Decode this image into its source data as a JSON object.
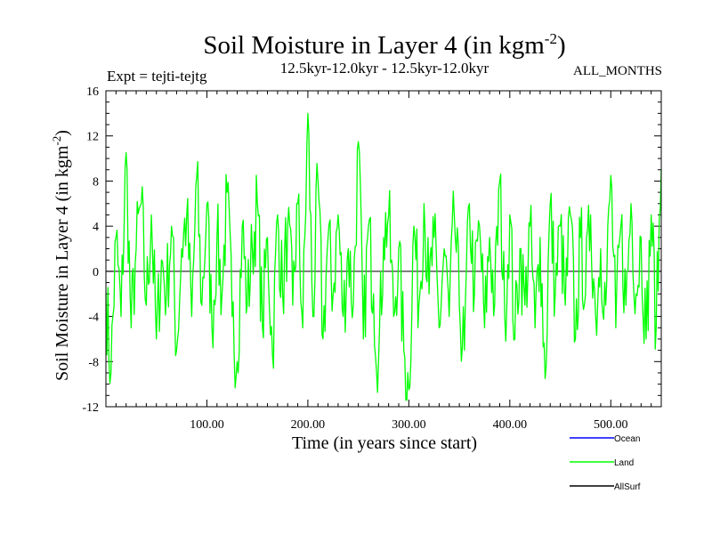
{
  "header": {
    "title_main": "Soil Moisture in Layer 4 (in kgm",
    "title_sup": "-2",
    "title_close": ")",
    "expt": "Expt = tejti-tejtg",
    "period": "12.5kyr-12.0kyr - 12.5kyr-12.0kyr",
    "months": "ALL_MONTHS"
  },
  "chart_data": {
    "type": "line",
    "title": "Soil Moisture in Layer 4 (in kgm-2)",
    "xlabel": "Time (in years since start)",
    "ylabel_main": "Soil Moisture in Layer 4 (in kgm",
    "ylabel_sup": "-2",
    "ylabel_close": ")",
    "xlim": [
      0,
      550
    ],
    "ylim": [
      -12,
      16
    ],
    "x_ticks": [
      100,
      200,
      300,
      400,
      500
    ],
    "x_tick_labels": [
      "100.00",
      "200.00",
      "300.00",
      "400.00",
      "500.00"
    ],
    "y_ticks": [
      -12,
      -8,
      -4,
      0,
      4,
      8,
      12,
      16
    ],
    "y_tick_labels": [
      "-12",
      "-8",
      "-4",
      "0",
      "4",
      "8",
      "12",
      "16"
    ],
    "zero_line": true,
    "series": [
      {
        "name": "Ocean",
        "color": "#0000ff",
        "values": []
      },
      {
        "name": "Land",
        "color": "#00ff00",
        "x": [
          0,
          5,
          10,
          15,
          20,
          25,
          30,
          35,
          40,
          45,
          50,
          55,
          60,
          65,
          70,
          75,
          80,
          85,
          90,
          95,
          100,
          105,
          110,
          115,
          120,
          125,
          130,
          135,
          140,
          145,
          150,
          155,
          160,
          165,
          170,
          175,
          180,
          185,
          190,
          195,
          200,
          205,
          210,
          215,
          220,
          225,
          230,
          235,
          240,
          245,
          250,
          255,
          260,
          265,
          270,
          275,
          280,
          285,
          290,
          295,
          300,
          305,
          310,
          315,
          320,
          325,
          330,
          335,
          340,
          345,
          350,
          355,
          360,
          365,
          370,
          375,
          380,
          385,
          390,
          395,
          400,
          405,
          410,
          415,
          420,
          425,
          430,
          435,
          440,
          445,
          450,
          455,
          460,
          465,
          470,
          475,
          480,
          485,
          490,
          495,
          500,
          505,
          510,
          515,
          520,
          525,
          530,
          535,
          540,
          545,
          550
        ],
        "values": [
          -2,
          -9,
          3,
          -4,
          10.5,
          -5,
          2,
          6,
          -3,
          5,
          -6,
          1,
          -2,
          4,
          -7,
          2,
          5,
          -4,
          8.5,
          -3,
          6,
          -5,
          3,
          -2,
          7,
          -4,
          -8,
          4,
          -3,
          2,
          6,
          -5,
          3,
          -7.5,
          5,
          -2,
          4,
          -3,
          6,
          -5,
          14,
          -4,
          8,
          -6,
          3,
          -2,
          5,
          -4,
          2,
          -3,
          11.5,
          -6,
          4,
          -2,
          -8,
          3,
          5,
          -4,
          2,
          -7,
          -10.5,
          4,
          -3,
          6,
          -2,
          3,
          -5,
          2,
          -4,
          5,
          -3,
          -7,
          6,
          -2,
          4,
          -5,
          3,
          -3,
          8,
          -4,
          5,
          -6,
          2,
          -3,
          4,
          -5,
          3,
          -9.5,
          6,
          -2,
          4,
          -3,
          5,
          -6,
          3,
          -2,
          5,
          -4,
          2,
          -3,
          8.5,
          -5,
          4,
          -3,
          6,
          -2,
          3,
          -6,
          5,
          -5,
          9
        ]
      },
      {
        "name": "AllSurf",
        "color": "#000000",
        "values": []
      }
    ],
    "legend_position": "bottom-right"
  }
}
